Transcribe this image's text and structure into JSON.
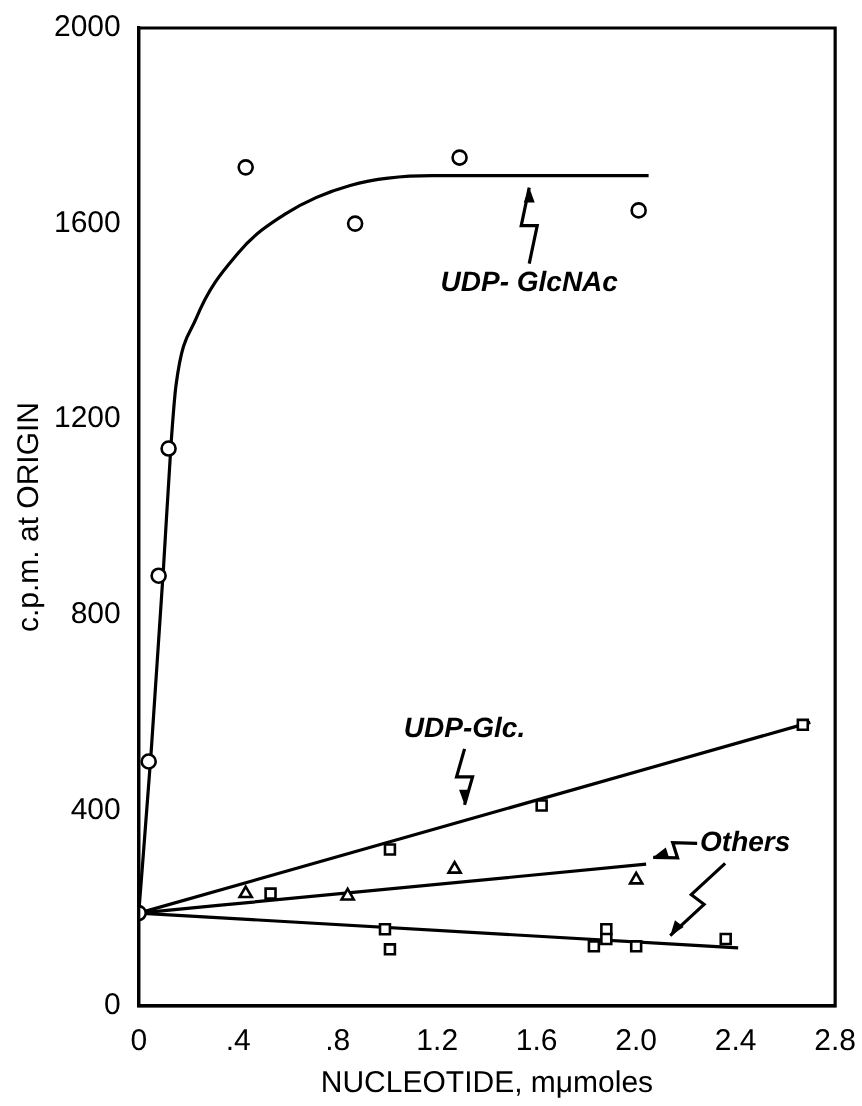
{
  "chart_data": {
    "type": "scatter",
    "xlabel": "NUCLEOTIDE, mμmoles",
    "ylabel": "c.p.m. at ORIGIN",
    "xlim": [
      0,
      2.8
    ],
    "xticks": [
      0,
      {
        "value": 0.4,
        "label": ".4"
      },
      {
        "value": 0.8,
        "label": ".8"
      },
      1.2,
      1.6,
      {
        "value": 2,
        "label": "2.0"
      },
      2.4,
      2.8
    ],
    "ylim": [
      0,
      2000
    ],
    "yticks": [
      0,
      400,
      800,
      1200,
      1600,
      2000
    ],
    "grid": false,
    "legend": false,
    "series": [
      {
        "marker": "circle",
        "color": "#000000",
        "x": [
          0,
          0.04,
          0.08,
          0.12,
          0.43,
          0.87,
          1.29,
          2.01
        ],
        "values": [
          190,
          500,
          880,
          1140,
          1715,
          1600,
          1735,
          1627
        ]
      },
      {
        "marker": "square",
        "color": "#000000",
        "x": [
          0.53,
          1.01,
          1.62,
          2.67
        ],
        "values": [
          230,
          320,
          410,
          575
        ]
      },
      {
        "marker": "triangle",
        "color": "#000000",
        "x": [
          0.43,
          0.84,
          1.27,
          2.0
        ],
        "values": [
          230,
          225,
          280,
          258
        ]
      },
      {
        "marker": "square",
        "color": "#000000",
        "x": [
          0.99,
          1.01,
          1.83,
          1.88,
          1.88,
          2.0,
          2.36
        ],
        "values": [
          157,
          116,
          122,
          157,
          137,
          122,
          137
        ]
      },
      {
        "type": "line",
        "marker": "none",
        "color": "#000000",
        "x": [
          0,
          0.05,
          0.1,
          0.13,
          0.15,
          0.23,
          0.4,
          0.59,
          0.85,
          1.18,
          2.05
        ],
        "values": [
          190,
          520,
          900,
          1150,
          1270,
          1405,
          1540,
          1620,
          1678,
          1698,
          1698
        ]
      },
      {
        "type": "line",
        "marker": "none",
        "color": "#000000",
        "x": [
          0,
          2.7
        ],
        "values": [
          190,
          580
        ]
      },
      {
        "type": "line",
        "marker": "none",
        "color": "#000000",
        "x": [
          0,
          2.04
        ],
        "values": [
          190,
          290
        ]
      },
      {
        "type": "line",
        "marker": "none",
        "color": "#000000",
        "x": [
          0,
          2.41
        ],
        "values": [
          190,
          119
        ]
      }
    ],
    "annotations": [
      {
        "text": "UDP- GlcNAc",
        "x": 1.57,
        "y": 1690
      },
      {
        "text": "UDP-Glc.",
        "x": 1.31,
        "y": 395
      },
      {
        "text": "Others",
        "x": 2.02,
        "y": 304
      }
    ]
  }
}
